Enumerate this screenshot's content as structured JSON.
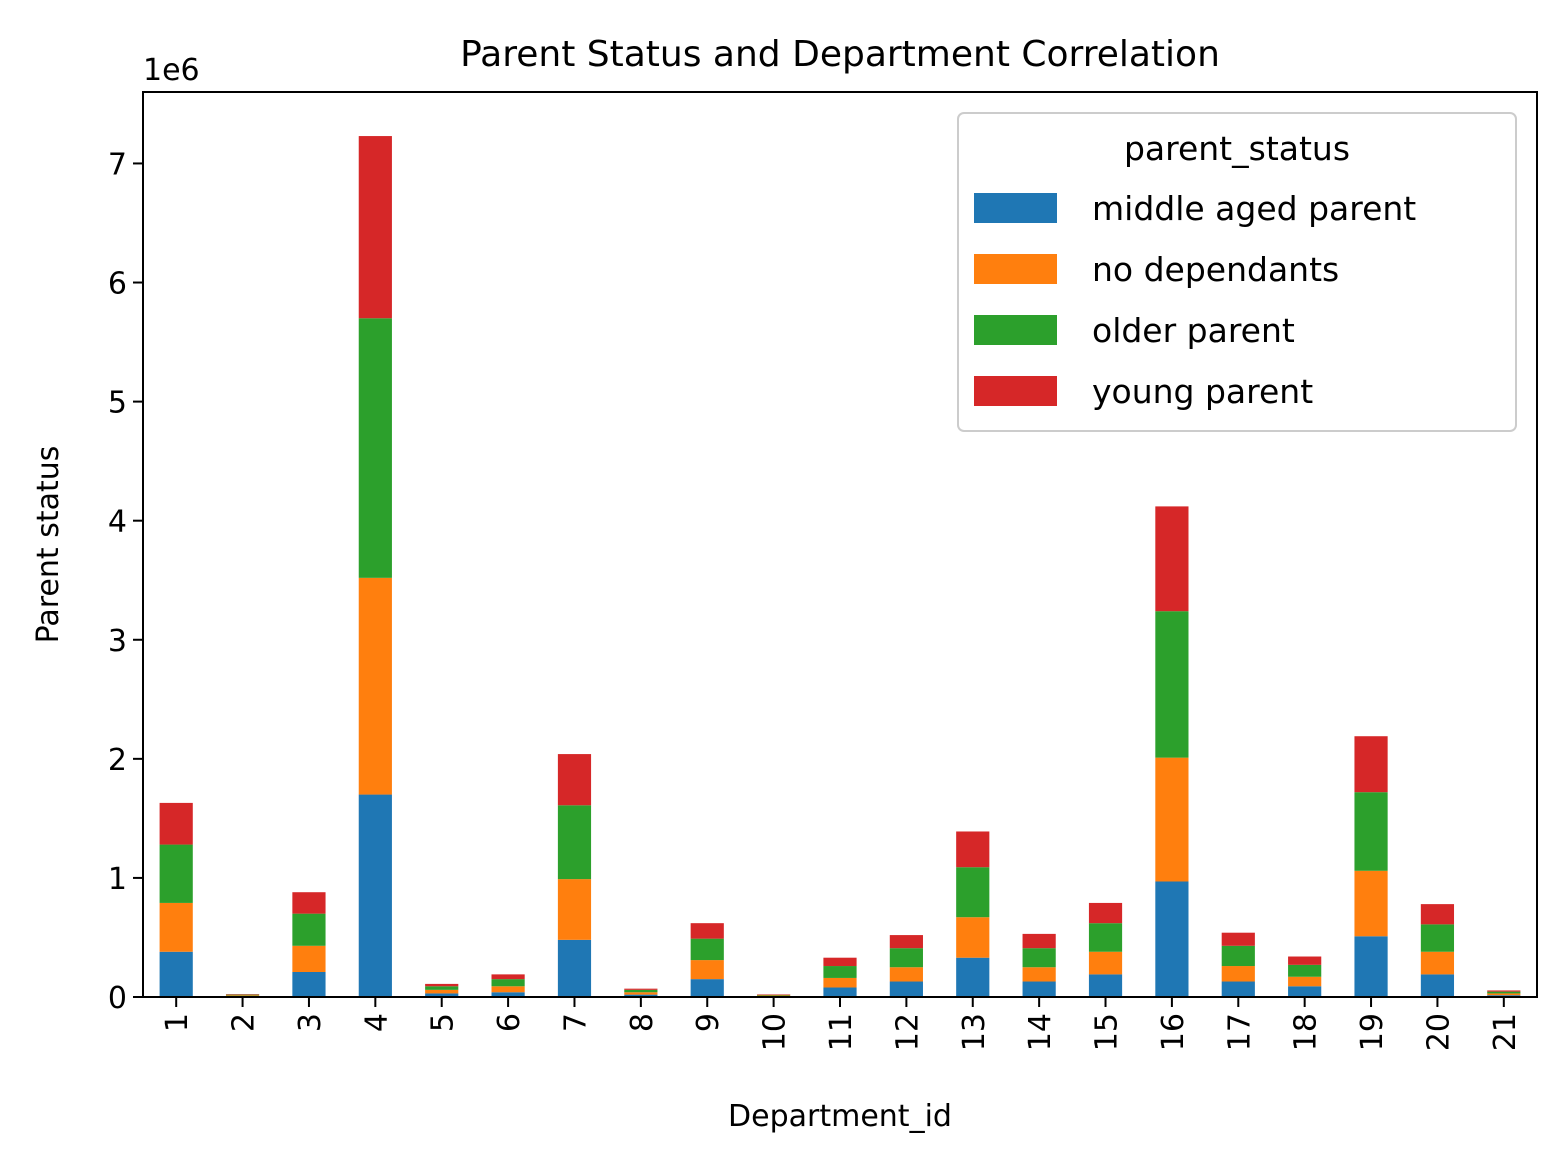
{
  "chart_data": {
    "type": "bar",
    "stacked": true,
    "title": "Parent Status and Department Correlation",
    "xlabel": "Department_id",
    "ylabel": "Parent status",
    "offset_label": "1e6",
    "scale": 1000000,
    "ylim": [
      0,
      7.6
    ],
    "yticks": [
      0,
      1,
      2,
      3,
      4,
      5,
      6,
      7
    ],
    "grid": false,
    "legend": {
      "title": "parent_status",
      "placement": "top-right"
    },
    "categories": [
      "1",
      "2",
      "3",
      "4",
      "5",
      "6",
      "7",
      "8",
      "9",
      "10",
      "11",
      "12",
      "13",
      "14",
      "15",
      "16",
      "17",
      "18",
      "19",
      "20",
      "21"
    ],
    "series": [
      {
        "name": "middle aged parent",
        "color": "#1f77b4",
        "values": [
          0.38,
          0.008,
          0.21,
          1.7,
          0.03,
          0.04,
          0.48,
          0.02,
          0.15,
          0.007,
          0.08,
          0.13,
          0.33,
          0.13,
          0.19,
          0.97,
          0.13,
          0.09,
          0.51,
          0.19,
          0.015
        ]
      },
      {
        "name": "no dependants",
        "color": "#ff7f0e",
        "values": [
          0.41,
          0.006,
          0.22,
          1.82,
          0.03,
          0.05,
          0.51,
          0.02,
          0.16,
          0.006,
          0.08,
          0.12,
          0.34,
          0.12,
          0.19,
          1.04,
          0.13,
          0.08,
          0.55,
          0.19,
          0.015
        ]
      },
      {
        "name": "older parent",
        "color": "#2ca02c",
        "values": [
          0.49,
          0.006,
          0.27,
          2.18,
          0.03,
          0.06,
          0.62,
          0.02,
          0.18,
          0.005,
          0.1,
          0.16,
          0.42,
          0.16,
          0.24,
          1.23,
          0.17,
          0.1,
          0.66,
          0.23,
          0.015
        ]
      },
      {
        "name": "young parent",
        "color": "#d62728",
        "values": [
          0.35,
          0.004,
          0.18,
          1.53,
          0.02,
          0.04,
          0.43,
          0.01,
          0.13,
          0.004,
          0.07,
          0.11,
          0.3,
          0.12,
          0.17,
          0.88,
          0.11,
          0.07,
          0.47,
          0.17,
          0.01
        ]
      }
    ]
  }
}
